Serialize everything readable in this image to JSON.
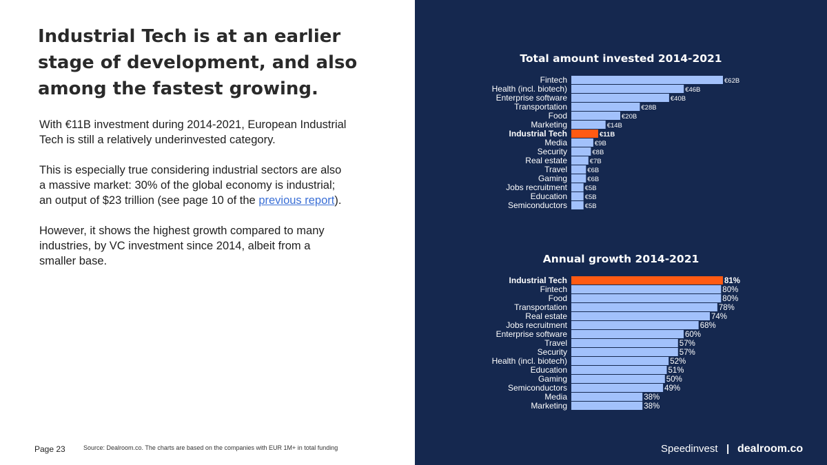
{
  "headline": "Industrial Tech is at an earlier stage of development, and also among the fastest growing.",
  "paragraphs": {
    "p1": "With €11B investment during 2014-2021, European Industrial Tech is still a relatively underinvested category.",
    "p2_before": "This is especially true considering industrial sectors are also a massive market: 30% of the global economy is industrial; an output of $23 trillion (see page 10 of the ",
    "p2_link": "previous report",
    "p2_after": ").",
    "p3": "However, it shows the highest growth compared to many industries, by VC investment since 2014, albeit from a smaller base."
  },
  "footer": {
    "page": "Page 23",
    "source": "Source: Dealroom.co. The charts are based on the companies with EUR 1M+ in total funding"
  },
  "brands": {
    "speedinvest": "Speedinvest",
    "separator": "|",
    "dealroom": "dealroom.co"
  },
  "colors": {
    "panel": "#15284f",
    "bar": "#a2c1fb",
    "highlight": "#ff5a13"
  },
  "chart_data": [
    {
      "type": "bar",
      "orientation": "horizontal",
      "title": "Total amount invested 2014-2021",
      "unit": "€B",
      "highlight": "Industrial Tech",
      "categories": [
        "Fintech",
        "Health (incl. biotech)",
        "Enterprise software",
        "Transportation",
        "Food",
        "Marketing",
        "Industrial Tech",
        "Media",
        "Security",
        "Real estate",
        "Travel",
        "Gaming",
        "Jobs recruitment",
        "Education",
        "Semiconductors"
      ],
      "values": [
        62,
        46,
        40,
        28,
        20,
        14,
        11,
        9,
        8,
        7,
        6,
        6,
        5,
        5,
        5
      ],
      "labels": [
        "€62B",
        "€46B",
        "€40B",
        "€28B",
        "€20B",
        "€14B",
        "€11B",
        "€9B",
        "€8B",
        "€7B",
        "€6B",
        "€6B",
        "€5B",
        "€5B",
        "€5B"
      ]
    },
    {
      "type": "bar",
      "orientation": "horizontal",
      "title": "Annual growth 2014-2021",
      "unit": "%",
      "highlight": "Industrial Tech",
      "categories": [
        "Industrial Tech",
        "Fintech",
        "Food",
        "Transportation",
        "Real estate",
        "Jobs recruitment",
        "Enterprise software",
        "Travel",
        "Security",
        "Health (incl. biotech)",
        "Education",
        "Gaming",
        "Semiconductors",
        "Media",
        "Marketing"
      ],
      "values": [
        81,
        80,
        80,
        78,
        74,
        68,
        60,
        57,
        57,
        52,
        51,
        50,
        49,
        38,
        38
      ],
      "labels": [
        "81%",
        "80%",
        "80%",
        "78%",
        "74%",
        "68%",
        "60%",
        "57%",
        "57%",
        "52%",
        "51%",
        "50%",
        "49%",
        "38%",
        "38%"
      ]
    }
  ]
}
